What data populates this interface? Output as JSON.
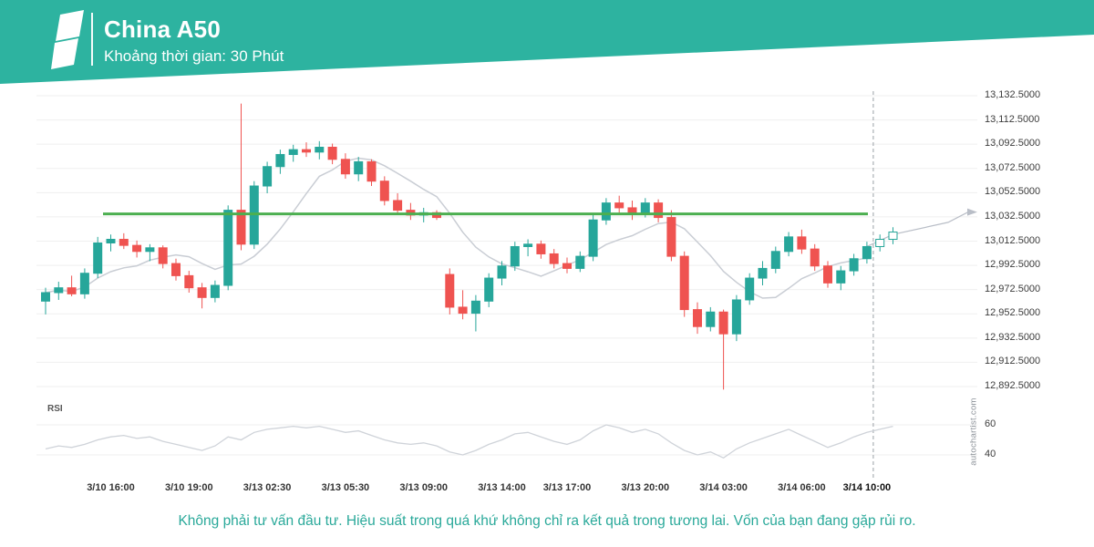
{
  "header": {
    "title": "China A50",
    "subtitle": "Khoảng thời gian: 30 Phút",
    "accent_color": "#2db3a0"
  },
  "watermark": "autochartist.com",
  "footer": {
    "disclaimer": "Không phải tư vấn đầu tư. Hiệu suất trong quá khứ không chỉ ra kết quả trong tương lai. Vốn của bạn đang gặp rủi ro."
  },
  "chart_data": {
    "type": "candlestick",
    "title": "China A50",
    "interval": "30 Phút",
    "ylim": [
      12885,
      13140
    ],
    "y_ticks": [
      13132.5,
      13112.5,
      13092.5,
      13072.5,
      13052.5,
      13032.5,
      13012.5,
      12992.5,
      12972.5,
      12952.5,
      12932.5,
      12912.5,
      12892.5
    ],
    "horizontal_line": 13035,
    "dashed_line_index": 63,
    "x_labels": [
      {
        "label": "3/10 16:00",
        "i": 5
      },
      {
        "label": "3/10 19:00",
        "i": 11
      },
      {
        "label": "3/13 02:30",
        "i": 17
      },
      {
        "label": "3/13 05:30",
        "i": 23
      },
      {
        "label": "3/13 09:00",
        "i": 29
      },
      {
        "label": "3/13 14:00",
        "i": 35
      },
      {
        "label": "3/13 17:00",
        "i": 40
      },
      {
        "label": "3/13 20:00",
        "i": 46
      },
      {
        "label": "3/14 03:00",
        "i": 52
      },
      {
        "label": "3/14 06:00",
        "i": 58
      },
      {
        "label": "3/14 10:00",
        "i": 63,
        "bold": true
      }
    ],
    "candles": [
      [
        12963,
        12974,
        12952,
        12970
      ],
      [
        12970,
        12979,
        12964,
        12974
      ],
      [
        12974,
        12984,
        12967,
        12969
      ],
      [
        12969,
        12990,
        12965,
        12986
      ],
      [
        12986,
        13016,
        12982,
        13011
      ],
      [
        13011,
        13018,
        13004,
        13014
      ],
      [
        13014,
        13019,
        13006,
        13009
      ],
      [
        13009,
        13013,
        12999,
        13004
      ],
      [
        13004,
        13010,
        12996,
        13007
      ],
      [
        13007,
        13009,
        12990,
        12994
      ],
      [
        12994,
        12998,
        12980,
        12984
      ],
      [
        12984,
        12988,
        12970,
        12974
      ],
      [
        12974,
        12978,
        12957,
        12966
      ],
      [
        12966,
        12980,
        12962,
        12976
      ],
      [
        12976,
        13042,
        12972,
        13038
      ],
      [
        13038,
        13126,
        13005,
        13010
      ],
      [
        13010,
        13062,
        13006,
        13058
      ],
      [
        13058,
        13078,
        13052,
        13074
      ],
      [
        13074,
        13088,
        13068,
        13084
      ],
      [
        13084,
        13092,
        13078,
        13088
      ],
      [
        13088,
        13094,
        13082,
        13086
      ],
      [
        13086,
        13095,
        13080,
        13090
      ],
      [
        13090,
        13093,
        13076,
        13080
      ],
      [
        13080,
        13085,
        13064,
        13068
      ],
      [
        13068,
        13082,
        13062,
        13078
      ],
      [
        13078,
        13080,
        13058,
        13062
      ],
      [
        13062,
        13066,
        13042,
        13046
      ],
      [
        13046,
        13052,
        13034,
        13038
      ],
      [
        13038,
        13044,
        13030,
        13034
      ],
      [
        13034,
        13040,
        13028,
        13036
      ],
      [
        13036,
        13038,
        13030,
        13032
      ],
      [
        12985,
        12990,
        12952,
        12958
      ],
      [
        12958,
        12972,
        12948,
        12953
      ],
      [
        12953,
        12968,
        12938,
        12963
      ],
      [
        12963,
        12986,
        12958,
        12982
      ],
      [
        12982,
        12996,
        12976,
        12992
      ],
      [
        12992,
        13012,
        12988,
        13008
      ],
      [
        13008,
        13014,
        13000,
        13010
      ],
      [
        13010,
        13013,
        12998,
        13002
      ],
      [
        13002,
        13006,
        12990,
        12994
      ],
      [
        12994,
        12999,
        12986,
        12990
      ],
      [
        12990,
        13004,
        12987,
        13000
      ],
      [
        13000,
        13034,
        12996,
        13030
      ],
      [
        13030,
        13048,
        13026,
        13044
      ],
      [
        13044,
        13050,
        13036,
        13040
      ],
      [
        13040,
        13046,
        13030,
        13036
      ],
      [
        13036,
        13048,
        13032,
        13044
      ],
      [
        13044,
        13047,
        13028,
        13032
      ],
      [
        13032,
        13038,
        12996,
        13000
      ],
      [
        13000,
        13004,
        12950,
        12956
      ],
      [
        12956,
        12962,
        12936,
        12942
      ],
      [
        12942,
        12958,
        12938,
        12954
      ],
      [
        12954,
        12956,
        12890,
        12936
      ],
      [
        12936,
        12968,
        12930,
        12964
      ],
      [
        12964,
        12986,
        12960,
        12982
      ],
      [
        12982,
        12996,
        12976,
        12990
      ],
      [
        12990,
        13008,
        12986,
        13004
      ],
      [
        13004,
        13020,
        13000,
        13016
      ],
      [
        13016,
        13022,
        13002,
        13006
      ],
      [
        13006,
        13010,
        12988,
        12992
      ],
      [
        12992,
        12996,
        12974,
        12978
      ],
      [
        12978,
        12992,
        12972,
        12988
      ],
      [
        12988,
        13002,
        12984,
        12998
      ],
      [
        12998,
        13012,
        12994,
        13008
      ]
    ],
    "forecast_candles": [
      [
        13008,
        13018,
        13004,
        13014
      ],
      [
        13014,
        13024,
        13010,
        13020
      ]
    ],
    "rsi": {
      "label": "RSI",
      "ticks": [
        60,
        40
      ],
      "values": [
        44,
        46,
        45,
        47,
        50,
        52,
        53,
        51,
        52,
        49,
        47,
        45,
        43,
        46,
        52,
        50,
        55,
        57,
        58,
        59,
        58,
        59,
        57,
        55,
        56,
        53,
        50,
        48,
        47,
        48,
        46,
        42,
        40,
        43,
        47,
        50,
        54,
        55,
        52,
        49,
        47,
        50,
        56,
        60,
        58,
        55,
        57,
        54,
        48,
        43,
        40,
        42,
        38,
        44,
        48,
        51,
        54,
        57,
        53,
        49,
        45,
        48,
        52,
        55,
        57,
        59
      ]
    },
    "colors": {
      "up": "#26a69a",
      "down": "#ef5350",
      "hline": "#4caf50",
      "ma": "#c9cdd4",
      "rsi_line": "#cfd3d9",
      "grid": "#efefef",
      "dashed": "#9aa0a6",
      "arrow": "#b9bec7"
    }
  }
}
